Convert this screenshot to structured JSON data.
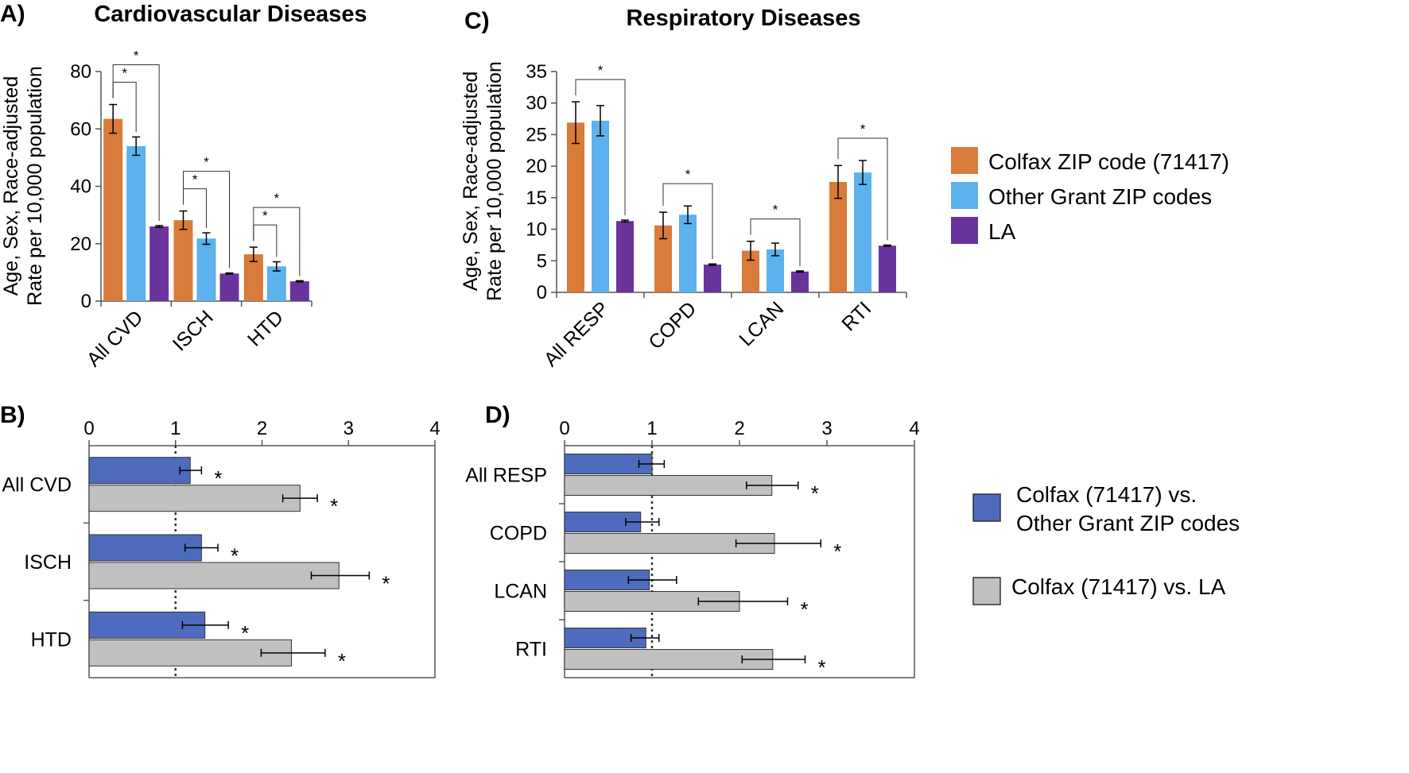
{
  "colors": {
    "colfax": "#d97b3a",
    "other": "#5db1ec",
    "la": "#6a339c",
    "vs_other": "#4e6bbd",
    "vs_la": "#c0c0c0"
  },
  "legend_top": [
    "Colfax ZIP code (71417)",
    "Other Grant ZIP codes",
    "LA"
  ],
  "legend_bottom": [
    {
      "lines": [
        "Colfax (71417) vs.",
        "Other Grant ZIP codes"
      ]
    },
    {
      "lines": [
        "Colfax (71417) vs. LA"
      ]
    }
  ],
  "chart_data": [
    {
      "panel": "A)",
      "type": "bar",
      "title": "Cardiovascular Diseases",
      "ylabel": [
        "Age, Sex, Race-adjusted",
        "Rate per 10,000 population"
      ],
      "ylim": [
        0,
        80
      ],
      "yticks": [
        0,
        20,
        40,
        60,
        80
      ],
      "categories": [
        "All CVD",
        "ISCH",
        "HTD"
      ],
      "series": [
        {
          "name": "Colfax ZIP code (71417)",
          "values": [
            63.5,
            28.2,
            16.3
          ],
          "err": [
            5.0,
            3.2,
            2.5
          ]
        },
        {
          "name": "Other Grant ZIP codes",
          "values": [
            54.0,
            21.8,
            12.1
          ],
          "err": [
            3.2,
            2.0,
            1.6
          ]
        },
        {
          "name": "LA",
          "values": [
            26.0,
            9.6,
            6.9
          ],
          "err": [
            0.3,
            0.2,
            0.2
          ]
        }
      ],
      "significance": [
        {
          "category": 0,
          "marks": [
            "*",
            "*"
          ]
        },
        {
          "category": 1,
          "marks": [
            "*",
            "*"
          ]
        },
        {
          "category": 2,
          "marks": [
            "*",
            "*"
          ]
        }
      ]
    },
    {
      "panel": "C)",
      "type": "bar",
      "title": "Respiratory Diseases",
      "ylabel": [
        "Age, Sex, Race-adjusted",
        "Rate per 10,000 population"
      ],
      "ylim": [
        0,
        35
      ],
      "yticks": [
        0,
        5,
        10,
        15,
        20,
        25,
        30,
        35
      ],
      "categories": [
        "All RESP",
        "COPD",
        "LCAN",
        "RTI"
      ],
      "series": [
        {
          "name": "Colfax ZIP code (71417)",
          "values": [
            26.9,
            10.6,
            6.6,
            17.5
          ],
          "err": [
            3.3,
            2.1,
            1.5,
            2.6
          ]
        },
        {
          "name": "Other Grant ZIP codes",
          "values": [
            27.2,
            12.3,
            6.8,
            19.0
          ],
          "err": [
            2.4,
            1.4,
            1.0,
            1.9
          ]
        },
        {
          "name": "LA",
          "values": [
            11.3,
            4.4,
            3.3,
            7.4
          ],
          "err": [
            0.15,
            0.1,
            0.1,
            0.1
          ]
        }
      ],
      "significance": [
        {
          "category": 0,
          "marks": [
            "*"
          ]
        },
        {
          "category": 1,
          "marks": [
            "*"
          ]
        },
        {
          "category": 2,
          "marks": [
            "*"
          ]
        },
        {
          "category": 3,
          "marks": [
            "*"
          ]
        }
      ]
    },
    {
      "panel": "B)",
      "type": "bar",
      "orientation": "horizontal",
      "xlim": [
        0,
        4
      ],
      "xticks": [
        0,
        1,
        2,
        3,
        4
      ],
      "reference_line": 1,
      "categories": [
        "All CVD",
        "ISCH",
        "HTD"
      ],
      "series": [
        {
          "name": "Colfax (71417) vs. Other Grant ZIP codes",
          "values": [
            1.17,
            1.3,
            1.34
          ],
          "err_low": [
            1.05,
            1.11,
            1.08
          ],
          "err_high": [
            1.3,
            1.49,
            1.61
          ],
          "marks": [
            "*",
            "*",
            "*"
          ]
        },
        {
          "name": "Colfax (71417) vs. LA",
          "values": [
            2.44,
            2.89,
            2.34
          ],
          "err_low": [
            2.24,
            2.57,
            1.99
          ],
          "err_high": [
            2.64,
            3.24,
            2.73
          ],
          "marks": [
            "*",
            "*",
            "*"
          ]
        }
      ]
    },
    {
      "panel": "D)",
      "type": "bar",
      "orientation": "horizontal",
      "xlim": [
        0,
        4
      ],
      "xticks": [
        0,
        1,
        2,
        3,
        4
      ],
      "reference_line": 1,
      "categories": [
        "All RESP",
        "COPD",
        "LCAN",
        "RTI"
      ],
      "series": [
        {
          "name": "Colfax (71417) vs. Other Grant ZIP codes",
          "values": [
            1.0,
            0.87,
            0.97,
            0.93
          ],
          "err_low": [
            0.85,
            0.7,
            0.73,
            0.76
          ],
          "err_high": [
            1.14,
            1.08,
            1.28,
            1.08
          ],
          "marks": [
            "",
            "",
            "",
            ""
          ]
        },
        {
          "name": "Colfax (71417) vs. LA",
          "values": [
            2.37,
            2.4,
            2.0,
            2.38
          ],
          "err_low": [
            2.08,
            1.96,
            1.53,
            2.03
          ],
          "err_high": [
            2.67,
            2.93,
            2.55,
            2.75
          ],
          "marks": [
            "*",
            "*",
            "*",
            "*"
          ]
        }
      ]
    }
  ]
}
